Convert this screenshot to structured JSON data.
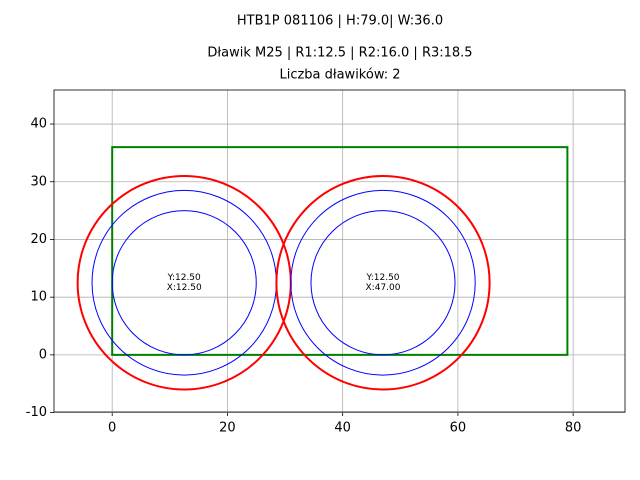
{
  "chart_data": {
    "type": "layout",
    "suptitle": "HTB1P 081106 | H:79.0| W:36.0",
    "title": "Dławik M25 | R1:12.5 | R2:16.0 | R3:18.5",
    "subtitle": "Liczba dławików: 2",
    "rectangle": {
      "x": 0,
      "y": 0,
      "width": 79,
      "height": 36,
      "color": "#008000"
    },
    "radii": [
      12.5,
      16.0,
      18.5
    ],
    "radius_colors": [
      "#0000ff",
      "#0000ff",
      "#ff0000"
    ],
    "circles": [
      {
        "x": 12.5,
        "y": 12.5,
        "label_y": "Y:12.50",
        "label_x": "X:12.50"
      },
      {
        "x": 47.0,
        "y": 12.5,
        "label_y": "Y:12.50",
        "label_x": "X:47.00"
      }
    ],
    "xlim": [
      -10.1,
      89
    ],
    "ylim": [
      -9.9,
      45.9
    ],
    "xticks": [
      0,
      20,
      40,
      60,
      80
    ],
    "yticks": [
      -10,
      0,
      10,
      20,
      30,
      40
    ],
    "grid": true
  }
}
